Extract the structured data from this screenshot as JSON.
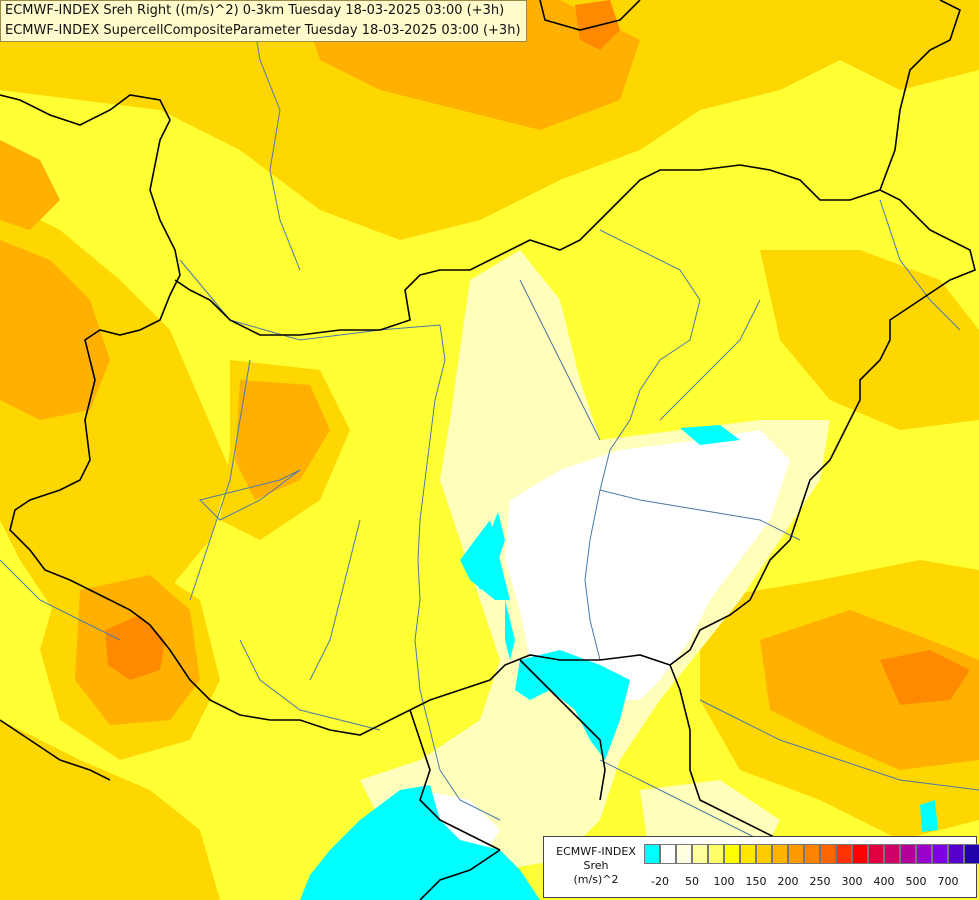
{
  "titles": {
    "line1": "ECMWF-INDEX Sreh Right ((m/s)^2) 0-3km Tuesday 18-03-2025 03:00 (+3h)",
    "line2": "ECMWF-INDEX SupercellCompositeParameter Tuesday 18-03-2025 03:00 (+3h)"
  },
  "legend": {
    "line1": "ECMWF-INDEX",
    "line2": "Sreh",
    "line3": "(m/s)^2",
    "colors": [
      "#00ffff",
      "#ffffff",
      "#ffffe0",
      "#ffffa0",
      "#ffff66",
      "#ffff00",
      "#ffe600",
      "#ffcc00",
      "#ffb400",
      "#ff9b00",
      "#ff8200",
      "#ff6600",
      "#ff3300",
      "#ff0000",
      "#e00040",
      "#cc0066",
      "#b30099",
      "#9900cc",
      "#8000e6",
      "#5500cc",
      "#2200aa",
      "#000088"
    ],
    "ticks": [
      "-20",
      "50",
      "100",
      "150",
      "200",
      "250",
      "300",
      "400",
      "500",
      "700"
    ]
  },
  "colors": {
    "yellow": "#ffff33",
    "gold": "#ffd700",
    "orange": "#ffb000",
    "dark_orange": "#ff8a00",
    "pale": "#ffffbb",
    "negative": "#00ffff",
    "border_line": "#000000",
    "river_line": "#4a7aa8"
  }
}
